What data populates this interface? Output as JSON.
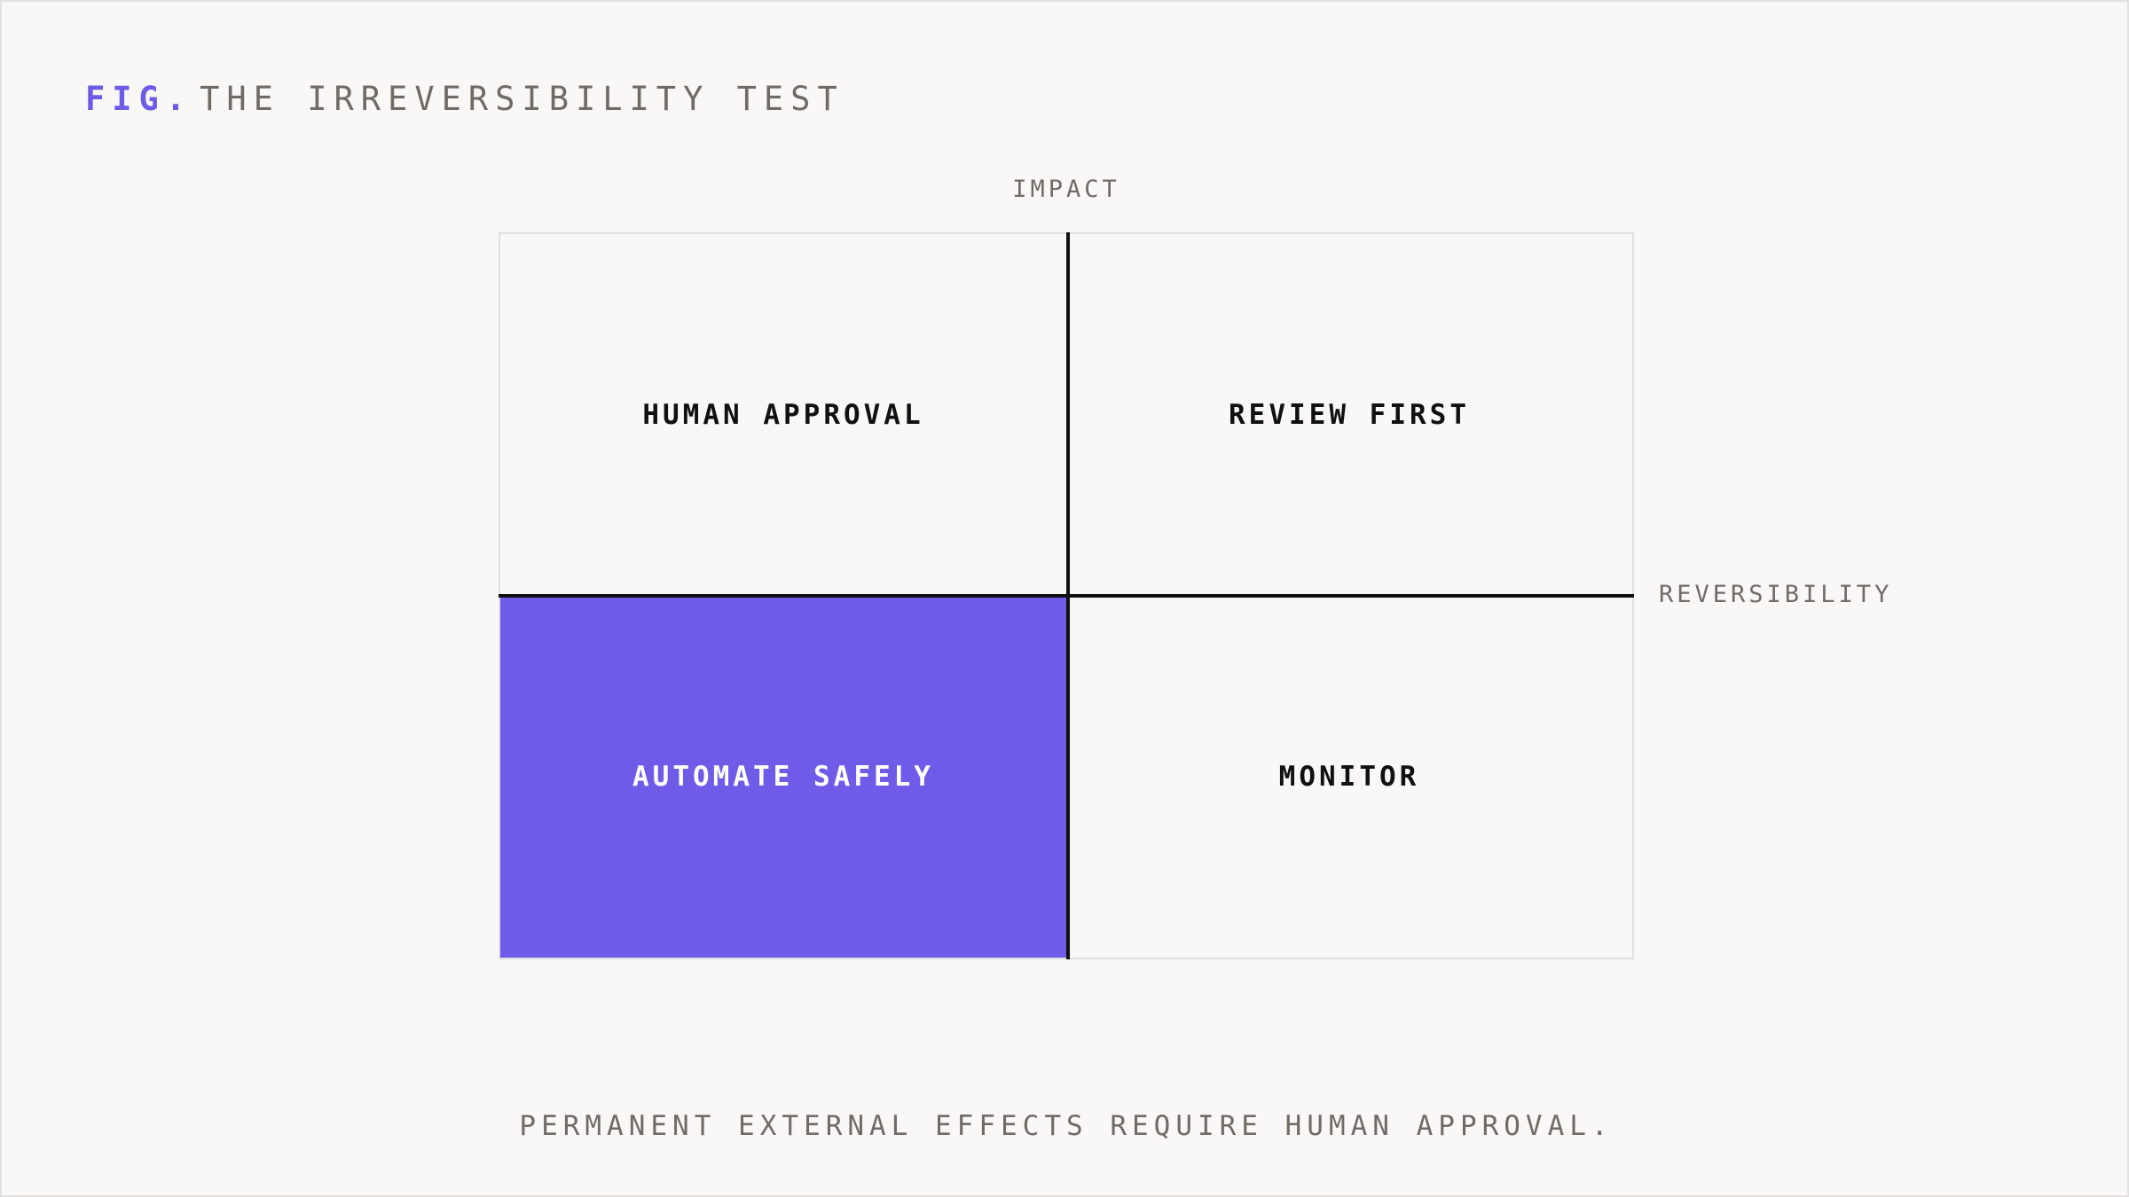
{
  "header": {
    "fig_label": "FIG.",
    "title": "THE IRREVERSIBILITY TEST"
  },
  "axes": {
    "y_label": "IMPACT",
    "x_label": "REVERSIBILITY"
  },
  "quadrants": [
    {
      "label": "HUMAN APPROVAL"
    },
    {
      "label": "REVIEW FIRST"
    },
    {
      "label": "AUTOMATE SAFELY"
    },
    {
      "label": "MONITOR"
    }
  ],
  "footer": "PERMANENT EXTERNAL EFFECTS REQUIRE HUMAN APPROVAL."
}
